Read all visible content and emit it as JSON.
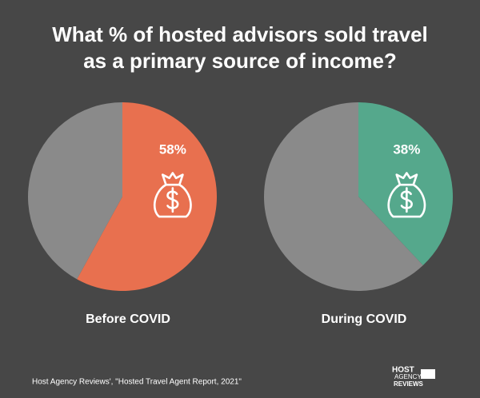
{
  "title": [
    "What % of hosted advisors sold travel",
    "as a primary source of income?"
  ],
  "source": "Host Agency Reviews', \"Hosted Travel Agent Report, 2021\"",
  "logo": [
    "HOST",
    "AGENCY",
    "REVIEWS"
  ],
  "chart_data": [
    {
      "type": "pie",
      "title": "Before COVID",
      "values": [
        58,
        42
      ],
      "value_labels": [
        "58%",
        null
      ],
      "colors": [
        "#e8704f",
        "#8a8a8a"
      ]
    },
    {
      "type": "pie",
      "title": "During COVID",
      "values": [
        38,
        62
      ],
      "value_labels": [
        "38%",
        null
      ],
      "colors": [
        "#55a88c",
        "#8a8a8a"
      ]
    }
  ]
}
